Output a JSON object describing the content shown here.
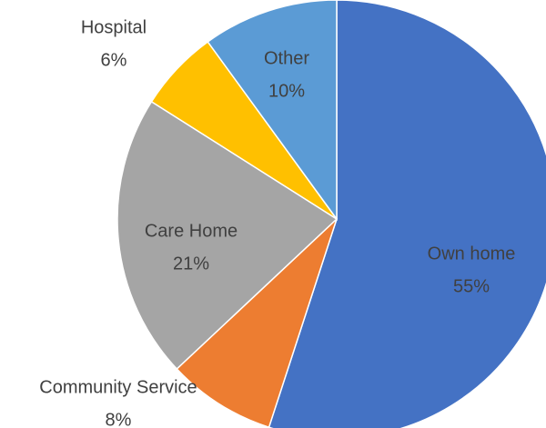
{
  "chart_data": {
    "type": "pie",
    "categories": [
      "Own home",
      "Community Service",
      "Care Home",
      "Hospital",
      "Other"
    ],
    "values": [
      55,
      8,
      21,
      6,
      10
    ],
    "value_labels": [
      "55%",
      "8%",
      "21%",
      "6%",
      "10%"
    ],
    "colors": [
      "#4472c4",
      "#ed7d31",
      "#a5a5a5",
      "#ffc000",
      "#5b9bd5"
    ]
  }
}
